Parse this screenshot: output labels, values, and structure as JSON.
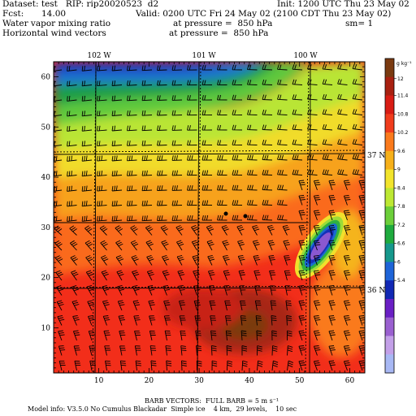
{
  "header": {
    "dataset": "Dataset: test   RIP: rip20020523  d2",
    "init": "Init: 1200 UTC Thu 23 May 02",
    "fcst_label": "Fcst:",
    "fcst_value": "14.00",
    "valid": "Valid: 0200 UTC Fri 24 May 02 (2100 CDT Thu 23 May 02)",
    "field1": "Water vapor mixing ratio",
    "field1_level": "at pressure =  850 hPa",
    "sm": "sm= 1",
    "field2": "Horizontal wind vectors",
    "field2_level": "at pressure =  850 hPa"
  },
  "map": {
    "lon_labels": [
      "102 W",
      "101 W",
      "100 W"
    ],
    "lat_labels": [
      "37 N",
      "36 N"
    ],
    "y_ticks": [
      "60",
      "50",
      "40",
      "30",
      "20",
      "10"
    ],
    "x_ticks": [
      "10",
      "20",
      "30",
      "40",
      "50",
      "60"
    ],
    "stations": 2
  },
  "colorbar": {
    "unit": "g kg⁻¹",
    "labels": [
      "12",
      "11.4",
      "10.8",
      "10.2",
      "9.6",
      "9",
      "8.4",
      "7.8",
      "7.2",
      "6.6",
      "6",
      "5.4"
    ],
    "colors": [
      "#7a3a10",
      "#a82010",
      "#d81c14",
      "#f03c1c",
      "#fa7a1c",
      "#f6b01a",
      "#f2e42c",
      "#bde833",
      "#6ccf3a",
      "#1fab3e",
      "#16988c",
      "#1e64d8",
      "#1228b4",
      "#6a1fc4",
      "#9a60d0",
      "#c3a0e8",
      "#a8b8f4"
    ]
  },
  "footer": {
    "barb_note": "BARB VECTORS:  FULL BARB = 5 m s⁻¹",
    "model_info": "Model info: V3.5.0 No Cumulus Blackadar  Simple ice    4 km,  29 levels,    10 sec"
  }
}
